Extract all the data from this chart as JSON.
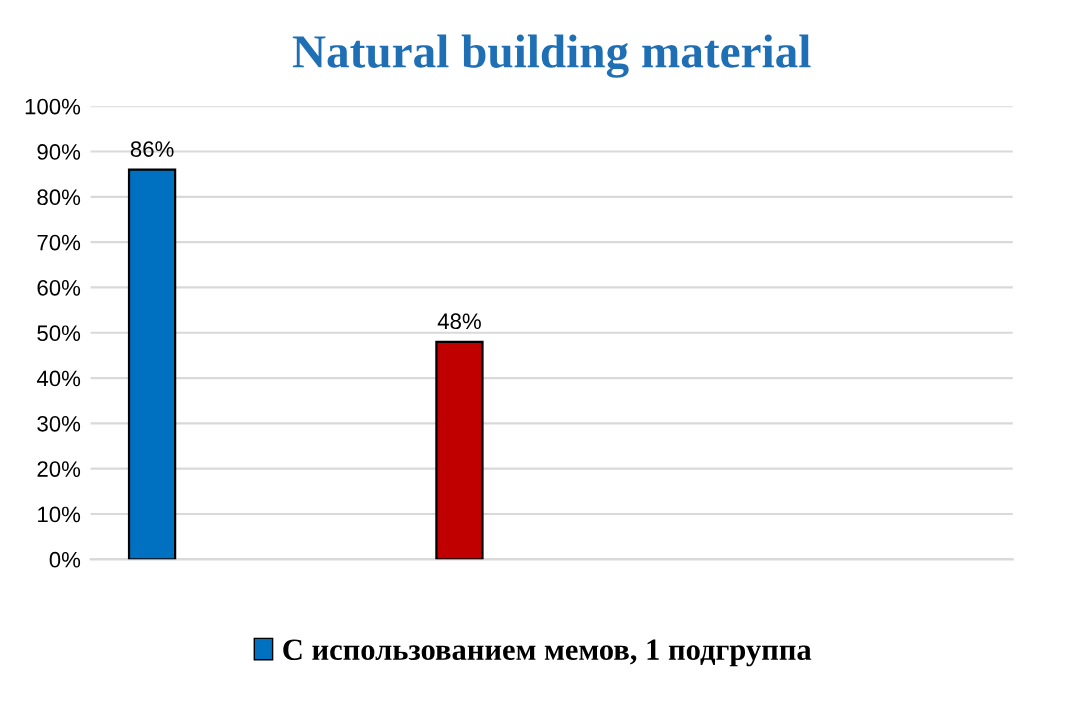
{
  "chart_data": {
    "type": "bar",
    "title": "Natural building material",
    "categories": [
      null,
      null,
      null
    ],
    "series": [
      {
        "name": "С использованием мемов, 1 подгруппа",
        "color": "#0070c0",
        "colors": [
          "#0070c0",
          "#c00000",
          "#0070c0"
        ],
        "values": [
          86,
          48,
          null
        ],
        "value_labels": [
          "86%",
          "48%",
          null
        ]
      }
    ],
    "ylim": [
      0,
      100
    ],
    "yticks": [
      {
        "value": 0,
        "label": "0%"
      },
      {
        "value": 10,
        "label": "10%"
      },
      {
        "value": 20,
        "label": "20%"
      },
      {
        "value": 30,
        "label": "30%"
      },
      {
        "value": 40,
        "label": "40%"
      },
      {
        "value": 50,
        "label": "50%"
      },
      {
        "value": 60,
        "label": "60%"
      },
      {
        "value": 70,
        "label": "70%"
      },
      {
        "value": 80,
        "label": "80%"
      },
      {
        "value": 90,
        "label": "90%"
      },
      {
        "value": 100,
        "label": "100%"
      }
    ],
    "grid": "y",
    "legend": "bottom"
  }
}
